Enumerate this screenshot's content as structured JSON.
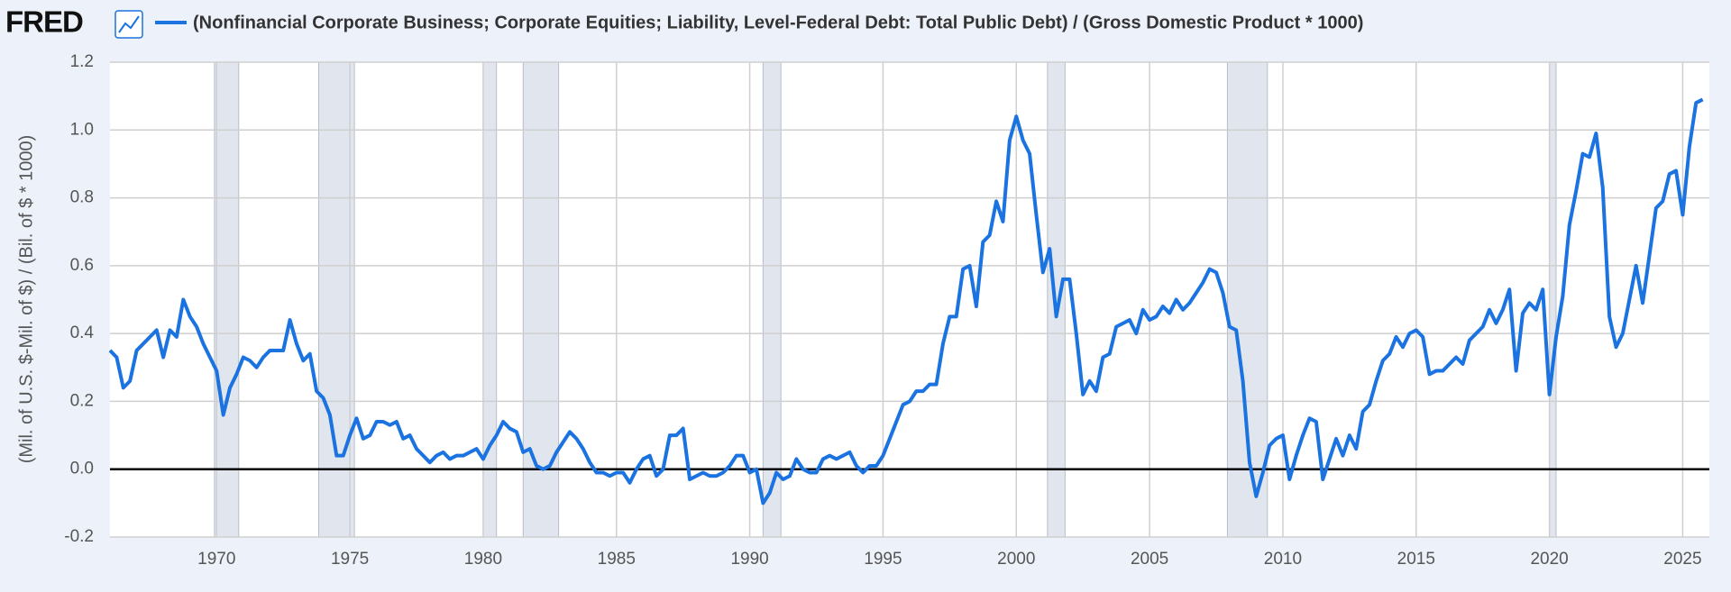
{
  "header": {
    "logo": "FRED"
  },
  "chart_data": {
    "type": "line",
    "ylabel": "(Mil. of U.S. $-Mil. of $) / (Bil. of $ * 1000)",
    "xlim": [
      1966,
      2026
    ],
    "xticks": [
      1970,
      1975,
      1980,
      1985,
      1990,
      1995,
      2000,
      2005,
      2010,
      2015,
      2020,
      2025
    ],
    "ylim": [
      -0.2,
      1.2
    ],
    "yticks": [
      {
        "value": -0.2,
        "label": "-0.2"
      },
      {
        "value": 0,
        "label": "0.0"
      },
      0.2,
      0.4,
      0.6,
      0.8,
      {
        "value": 1,
        "label": "1.0"
      },
      1.2
    ],
    "grid": true,
    "recessions": [
      [
        1969.92,
        1970.83
      ],
      [
        1973.83,
        1975.17
      ],
      [
        1980.0,
        1980.5
      ],
      [
        1981.5,
        1982.83
      ],
      [
        1990.5,
        1991.17
      ],
      [
        2001.17,
        2001.83
      ],
      [
        2007.92,
        2009.42
      ],
      [
        2020.0,
        2020.25
      ]
    ],
    "x": [
      1966,
      1966.25,
      1966.5,
      1966.75,
      1967,
      1967.25,
      1967.5,
      1967.75,
      1968,
      1968.25,
      1968.5,
      1968.75,
      1969,
      1969.25,
      1969.5,
      1969.75,
      1970,
      1970.25,
      1970.5,
      1970.75,
      1971,
      1971.25,
      1971.5,
      1971.75,
      1972,
      1972.25,
      1972.5,
      1972.75,
      1973,
      1973.25,
      1973.5,
      1973.75,
      1974,
      1974.25,
      1974.5,
      1974.75,
      1975,
      1975.25,
      1975.5,
      1975.75,
      1976,
      1976.25,
      1976.5,
      1976.75,
      1977,
      1977.25,
      1977.5,
      1977.75,
      1978,
      1978.25,
      1978.5,
      1978.75,
      1979,
      1979.25,
      1979.5,
      1979.75,
      1980,
      1980.25,
      1980.5,
      1980.75,
      1981,
      1981.25,
      1981.5,
      1981.75,
      1982,
      1982.25,
      1982.5,
      1982.75,
      1983,
      1983.25,
      1983.5,
      1983.75,
      1984,
      1984.25,
      1984.5,
      1984.75,
      1985,
      1985.25,
      1985.5,
      1985.75,
      1986,
      1986.25,
      1986.5,
      1986.75,
      1987,
      1987.25,
      1987.5,
      1987.75,
      1988,
      1988.25,
      1988.5,
      1988.75,
      1989,
      1989.25,
      1989.5,
      1989.75,
      1990,
      1990.25,
      1990.5,
      1990.75,
      1991,
      1991.25,
      1991.5,
      1991.75,
      1992,
      1992.25,
      1992.5,
      1992.75,
      1993,
      1993.25,
      1993.5,
      1993.75,
      1994,
      1994.25,
      1994.5,
      1994.75,
      1995,
      1995.25,
      1995.5,
      1995.75,
      1996,
      1996.25,
      1996.5,
      1996.75,
      1997,
      1997.25,
      1997.5,
      1997.75,
      1998,
      1998.25,
      1998.5,
      1998.75,
      1999,
      1999.25,
      1999.5,
      1999.75,
      2000,
      2000.25,
      2000.5,
      2000.75,
      2001,
      2001.25,
      2001.5,
      2001.75,
      2002,
      2002.25,
      2002.5,
      2002.75,
      2003,
      2003.25,
      2003.5,
      2003.75,
      2004,
      2004.25,
      2004.5,
      2004.75,
      2005,
      2005.25,
      2005.5,
      2005.75,
      2006,
      2006.25,
      2006.5,
      2006.75,
      2007,
      2007.25,
      2007.5,
      2007.75,
      2008,
      2008.25,
      2008.5,
      2008.75,
      2009,
      2009.25,
      2009.5,
      2009.75,
      2010,
      2010.25,
      2010.5,
      2010.75,
      2011,
      2011.25,
      2011.5,
      2011.75,
      2012,
      2012.25,
      2012.5,
      2012.75,
      2013,
      2013.25,
      2013.5,
      2013.75,
      2014,
      2014.25,
      2014.5,
      2014.75,
      2015,
      2015.25,
      2015.5,
      2015.75,
      2016,
      2016.25,
      2016.5,
      2016.75,
      2017,
      2017.25,
      2017.5,
      2017.75,
      2018,
      2018.25,
      2018.5,
      2018.75,
      2019,
      2019.25,
      2019.5,
      2019.75,
      2020,
      2020.25,
      2020.5,
      2020.75,
      2021,
      2021.25,
      2021.5,
      2021.75,
      2022,
      2022.25,
      2022.5,
      2022.75,
      2023,
      2023.25,
      2023.5,
      2023.75,
      2024,
      2024.25,
      2024.5,
      2024.75,
      2025,
      2025.25,
      2025.5,
      2025.75
    ],
    "series": [
      {
        "name": "(Nonfinancial Corporate Business; Corporate Equities; Liability, Level-Federal Debt: Total Public Debt) / (Gross Domestic Product * 1000)",
        "color": "#1a73e0",
        "values": [
          0.35,
          0.33,
          0.24,
          0.26,
          0.35,
          0.37,
          0.39,
          0.41,
          0.33,
          0.41,
          0.39,
          0.5,
          0.45,
          0.42,
          0.37,
          0.33,
          0.29,
          0.16,
          0.24,
          0.28,
          0.33,
          0.32,
          0.3,
          0.33,
          0.35,
          0.35,
          0.35,
          0.44,
          0.37,
          0.32,
          0.34,
          0.23,
          0.21,
          0.16,
          0.04,
          0.04,
          0.1,
          0.15,
          0.09,
          0.1,
          0.14,
          0.14,
          0.13,
          0.14,
          0.09,
          0.1,
          0.06,
          0.04,
          0.02,
          0.04,
          0.05,
          0.03,
          0.04,
          0.04,
          0.05,
          0.06,
          0.03,
          0.07,
          0.1,
          0.14,
          0.12,
          0.11,
          0.05,
          0.06,
          0.01,
          0.0,
          0.01,
          0.05,
          0.08,
          0.11,
          0.09,
          0.06,
          0.02,
          -0.01,
          -0.01,
          -0.02,
          -0.01,
          -0.01,
          -0.04,
          0.0,
          0.03,
          0.04,
          -0.02,
          0.0,
          0.1,
          0.1,
          0.12,
          -0.03,
          -0.02,
          -0.01,
          -0.02,
          -0.02,
          -0.01,
          0.01,
          0.04,
          0.04,
          -0.01,
          0.0,
          -0.1,
          -0.07,
          -0.01,
          -0.03,
          -0.02,
          0.03,
          0.0,
          -0.01,
          -0.01,
          0.03,
          0.04,
          0.03,
          0.04,
          0.05,
          0.01,
          -0.01,
          0.01,
          0.01,
          0.04,
          0.09,
          0.14,
          0.19,
          0.2,
          0.23,
          0.23,
          0.25,
          0.25,
          0.37,
          0.45,
          0.45,
          0.59,
          0.6,
          0.48,
          0.67,
          0.69,
          0.79,
          0.73,
          0.97,
          1.04,
          0.97,
          0.93,
          0.75,
          0.58,
          0.65,
          0.45,
          0.56,
          0.56,
          0.4,
          0.22,
          0.26,
          0.23,
          0.33,
          0.34,
          0.42,
          0.43,
          0.44,
          0.4,
          0.47,
          0.44,
          0.45,
          0.48,
          0.46,
          0.5,
          0.47,
          0.49,
          0.52,
          0.55,
          0.59,
          0.58,
          0.52,
          0.42,
          0.41,
          0.26,
          0.02,
          -0.08,
          -0.01,
          0.07,
          0.09,
          0.1,
          -0.03,
          0.04,
          0.1,
          0.15,
          0.14,
          -0.03,
          0.03,
          0.09,
          0.04,
          0.1,
          0.06,
          0.17,
          0.19,
          0.26,
          0.32,
          0.34,
          0.39,
          0.36,
          0.4,
          0.41,
          0.39,
          0.28,
          0.29,
          0.29,
          0.31,
          0.33,
          0.31,
          0.38,
          0.4,
          0.42,
          0.47,
          0.43,
          0.47,
          0.53,
          0.29,
          0.46,
          0.49,
          0.47,
          0.53,
          0.22,
          0.39,
          0.51,
          0.72,
          0.82,
          0.93,
          0.92,
          0.99,
          0.83,
          0.45,
          0.36,
          0.4,
          0.5,
          0.6,
          0.49,
          0.63,
          0.77,
          0.79,
          0.87,
          0.88,
          0.75,
          0.95,
          1.08,
          1.09
        ]
      }
    ]
  }
}
